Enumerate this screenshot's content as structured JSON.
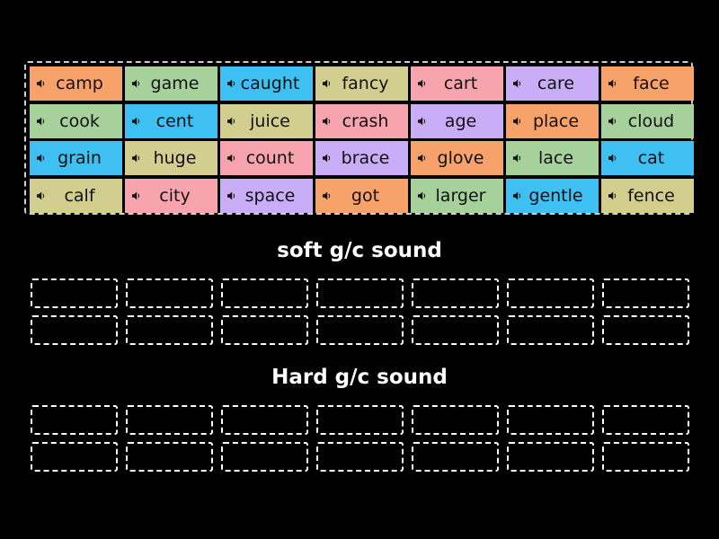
{
  "colors": {
    "background": "#000000",
    "orange": "#f7a26a",
    "green": "#a6d19b",
    "blue": "#3fc0f2",
    "olive": "#d2ce90",
    "pink": "#f8a4ae",
    "purple": "#c9adf7"
  },
  "tiles": [
    {
      "word": "camp",
      "color": "orange",
      "icon": "speaker-icon"
    },
    {
      "word": "game",
      "color": "green",
      "icon": "speaker-icon"
    },
    {
      "word": "caught",
      "color": "blue",
      "icon": "speaker-icon"
    },
    {
      "word": "fancy",
      "color": "olive",
      "icon": "speaker-icon"
    },
    {
      "word": "cart",
      "color": "pink",
      "icon": "speaker-icon"
    },
    {
      "word": "care",
      "color": "purple",
      "icon": "speaker-icon"
    },
    {
      "word": "face",
      "color": "orange",
      "icon": "speaker-icon"
    },
    {
      "word": "cook",
      "color": "green",
      "icon": "speaker-icon"
    },
    {
      "word": "cent",
      "color": "blue",
      "icon": "speaker-icon"
    },
    {
      "word": "juice",
      "color": "olive",
      "icon": "speaker-icon"
    },
    {
      "word": "crash",
      "color": "pink",
      "icon": "speaker-icon"
    },
    {
      "word": "age",
      "color": "purple",
      "icon": "speaker-icon"
    },
    {
      "word": "place",
      "color": "orange",
      "icon": "speaker-icon"
    },
    {
      "word": "cloud",
      "color": "green",
      "icon": "speaker-icon"
    },
    {
      "word": "grain",
      "color": "blue",
      "icon": "speaker-icon"
    },
    {
      "word": "huge",
      "color": "olive",
      "icon": "speaker-icon"
    },
    {
      "word": "count",
      "color": "pink",
      "icon": "speaker-icon"
    },
    {
      "word": "brace",
      "color": "purple",
      "icon": "speaker-icon"
    },
    {
      "word": "glove",
      "color": "orange",
      "icon": "speaker-icon"
    },
    {
      "word": "lace",
      "color": "green",
      "icon": "speaker-icon"
    },
    {
      "word": "cat",
      "color": "blue",
      "icon": "speaker-icon"
    },
    {
      "word": "calf",
      "color": "olive",
      "icon": "speaker-icon"
    },
    {
      "word": "city",
      "color": "pink",
      "icon": "speaker-icon"
    },
    {
      "word": "space",
      "color": "purple",
      "icon": "speaker-icon"
    },
    {
      "word": "got",
      "color": "orange",
      "icon": "speaker-icon"
    },
    {
      "word": "larger",
      "color": "green",
      "icon": "speaker-icon"
    },
    {
      "word": "gentle",
      "color": "blue",
      "icon": "speaker-icon"
    },
    {
      "word": "fence",
      "color": "olive",
      "icon": "speaker-icon"
    }
  ],
  "groups": [
    {
      "title": "soft g/c sound",
      "slot_count": 14
    },
    {
      "title": "Hard g/c sound",
      "slot_count": 14
    }
  ]
}
